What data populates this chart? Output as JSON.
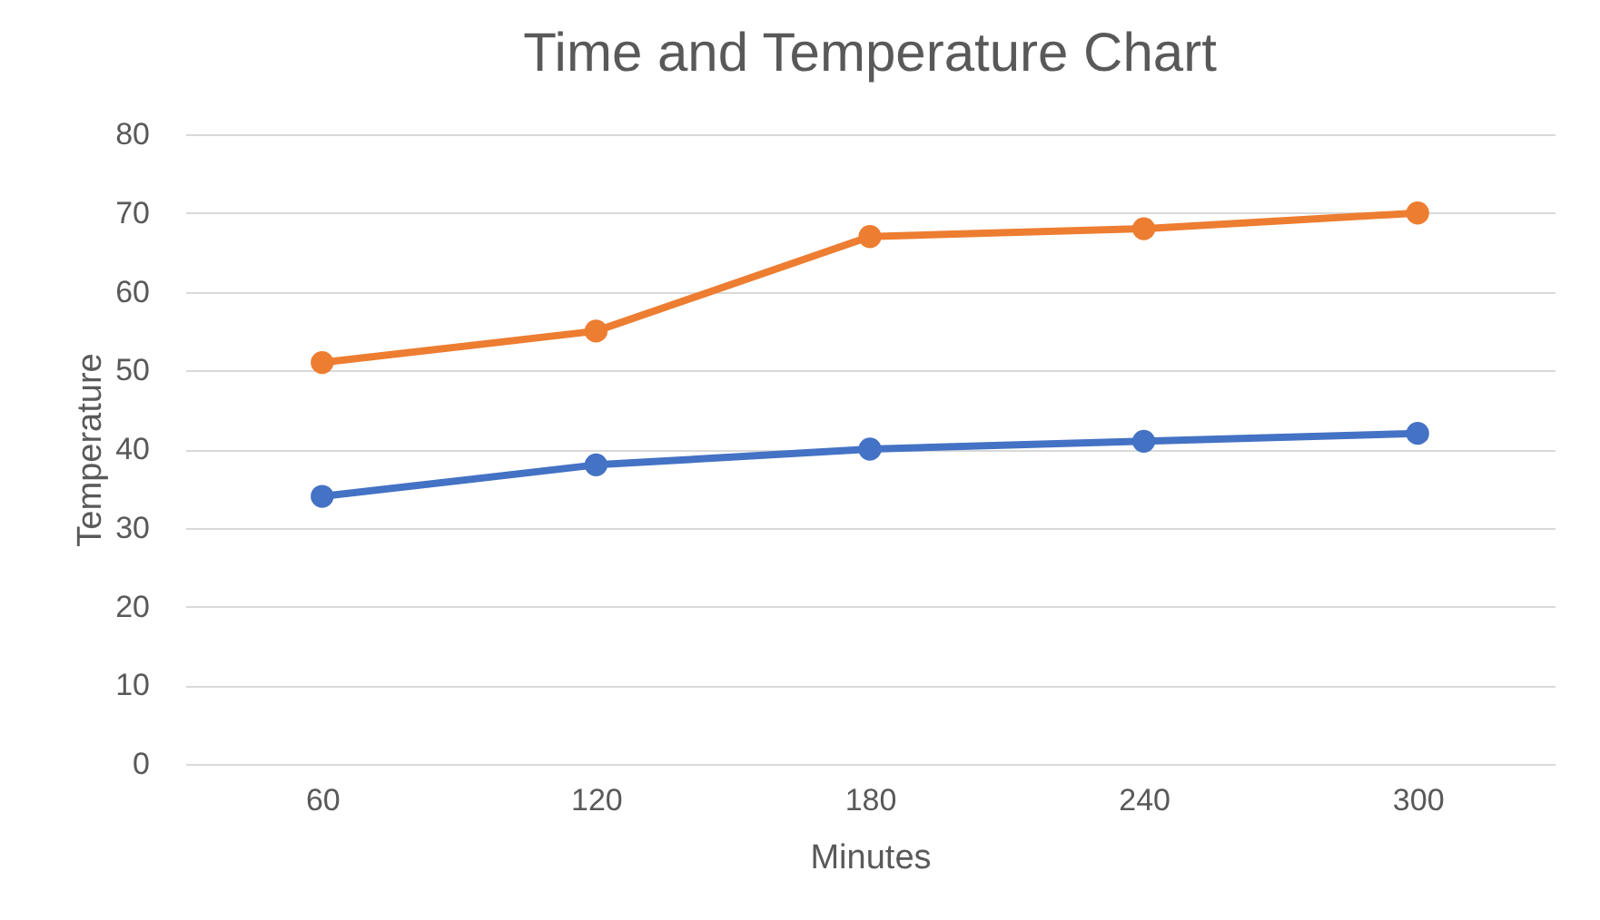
{
  "chart_data": {
    "type": "line",
    "title": "Time  and Temperature Chart",
    "xlabel": "Minutes",
    "ylabel": "Temperature",
    "categories": [
      "60",
      "120",
      "180",
      "240",
      "300"
    ],
    "series": [
      {
        "color": "#4472c4",
        "values": [
          34,
          38,
          40,
          41,
          42
        ]
      },
      {
        "color": "#ed7d31",
        "values": [
          51,
          55,
          67,
          68,
          70
        ]
      }
    ],
    "ylim": [
      0,
      80
    ],
    "yticks": [
      0,
      10,
      20,
      30,
      40,
      50,
      60,
      70,
      80
    ],
    "grid": "y",
    "marker": "circle",
    "line_style": "solid"
  }
}
